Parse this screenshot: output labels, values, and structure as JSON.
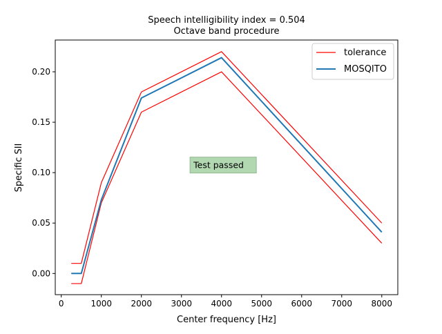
{
  "chart_data": {
    "type": "line",
    "title_line1": "Speech intelligibility index = 0.504",
    "title_line2": "Octave band procedure",
    "xlabel": "Center frequency [Hz]",
    "ylabel": "Specific SII",
    "xlim": [
      -150,
      8400
    ],
    "ylim": [
      -0.021,
      0.2315
    ],
    "xticks": [
      0,
      1000,
      2000,
      3000,
      4000,
      5000,
      6000,
      7000,
      8000
    ],
    "yticks": [
      0.0,
      0.05,
      0.1,
      0.15,
      0.2
    ],
    "ytick_labels": [
      "0.00",
      "0.05",
      "0.10",
      "0.15",
      "0.20"
    ],
    "x": [
      250,
      500,
      1000,
      2000,
      4000,
      8000
    ],
    "series": [
      {
        "name": "tolerance",
        "color": "#ff0000",
        "values": [
          0.01,
          0.01,
          0.09,
          0.18,
          0.22,
          0.05
        ]
      },
      {
        "name": "",
        "color": "#ff0000",
        "values": [
          -0.01,
          -0.01,
          0.07,
          0.16,
          0.2,
          0.03
        ]
      },
      {
        "name": "MOSQITO",
        "color": "#1f77b4",
        "values": [
          0.0,
          0.0,
          0.073,
          0.174,
          0.214,
          0.041
        ]
      }
    ],
    "legend_position": "upper-right",
    "annotation": {
      "text": "Test passed",
      "x": 3300,
      "y": 0.101,
      "background": "#b2d8b2"
    }
  }
}
